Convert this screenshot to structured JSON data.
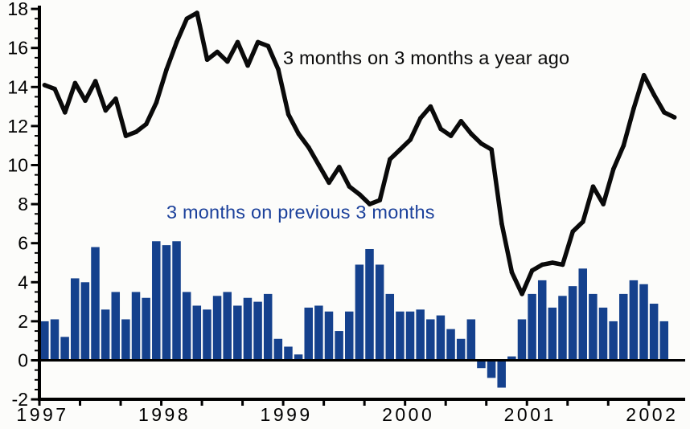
{
  "chart_data": {
    "type": "bar+line",
    "title": "",
    "x_axis": {
      "start_month": "1997-01",
      "year_labels": [
        "1997",
        "1998",
        "1999",
        "2000",
        "2001",
        "2002"
      ],
      "tick_every_months": 4
    },
    "y_axis": {
      "min": -2,
      "max": 18,
      "major_tick_step": 2,
      "minor_tick_step": 0.5,
      "tick_labels": [
        "18",
        "16",
        "14",
        "12",
        "10",
        "8",
        "6",
        "4",
        "2",
        "0",
        "-2"
      ]
    },
    "grid": false,
    "legend_position": "inline-annotations",
    "series": [
      {
        "name": "3 months on 3 months a year ago",
        "type": "line",
        "color": "#0a0a0a",
        "values": [
          14.1,
          13.9,
          12.7,
          14.2,
          13.3,
          14.3,
          12.8,
          13.4,
          11.5,
          11.7,
          12.1,
          13.2,
          14.9,
          16.3,
          17.5,
          17.8,
          15.4,
          15.8,
          15.3,
          16.3,
          15.1,
          16.3,
          16.1,
          14.9,
          12.6,
          11.6,
          10.9,
          10.0,
          9.1,
          9.9,
          8.9,
          8.5,
          8.0,
          8.2,
          10.3,
          10.8,
          11.3,
          12.4,
          13.0,
          11.85,
          11.5,
          12.25,
          11.6,
          11.1,
          10.8,
          7.0,
          4.5,
          3.4,
          4.6,
          4.9,
          5.0,
          4.9,
          6.6,
          7.1,
          8.9,
          8.0,
          9.8,
          11.0,
          12.9,
          14.6,
          13.6,
          12.7,
          12.45
        ]
      },
      {
        "name": "3 months on previous 3 months",
        "type": "bar",
        "color": "#15418d",
        "values": [
          2.0,
          2.1,
          1.2,
          4.2,
          4.0,
          5.8,
          2.6,
          3.5,
          2.1,
          3.5,
          3.2,
          6.1,
          5.9,
          6.1,
          3.5,
          2.8,
          2.6,
          3.3,
          3.5,
          2.8,
          3.2,
          3.0,
          3.4,
          1.1,
          0.7,
          0.3,
          2.7,
          2.8,
          2.5,
          1.5,
          2.5,
          4.9,
          5.7,
          4.9,
          3.4,
          2.5,
          2.5,
          2.6,
          2.1,
          2.3,
          1.6,
          1.1,
          2.1,
          -0.4,
          -0.9,
          -1.4,
          0.2,
          2.1,
          3.4,
          4.1,
          2.7,
          3.3,
          3.8,
          4.7,
          3.4,
          2.7,
          2.0,
          3.4,
          4.1,
          3.9,
          2.9,
          2.0
        ]
      }
    ]
  },
  "annotations": {
    "line_series_label": {
      "text": "3 months on 3 months a year ago",
      "color": "#0a0a0a"
    },
    "bar_series_label": {
      "text": "3 months on previous 3 months",
      "color": "#1c419b"
    }
  }
}
